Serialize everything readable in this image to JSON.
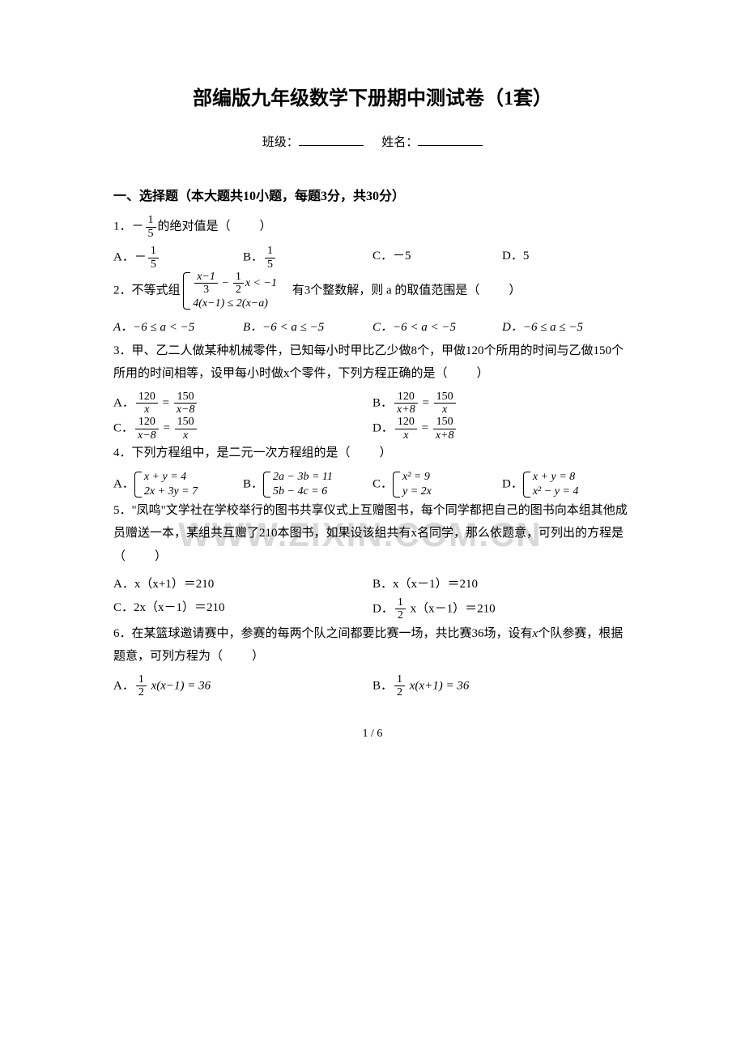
{
  "title": "部编版九年级数学下册期中测试卷（1套）",
  "info": {
    "class_label": "班级：",
    "name_label": "姓名："
  },
  "section1_header": "一、选择题（本大题共10小题，每题3分，共30分）",
  "watermark": "WWW.ZIXIN.COM.CN",
  "pagenum": "1 / 6",
  "q1": {
    "stem_a": "1．－",
    "stem_frac_num": "1",
    "stem_frac_den": "5",
    "stem_b": "的绝对值是",
    "paren": "（　　）",
    "A_pre": "A．－",
    "A_num": "1",
    "A_den": "5",
    "B_pre": "B．",
    "B_num": "1",
    "B_den": "5",
    "C": "C．－5",
    "D": "D．5"
  },
  "q2": {
    "stem_a": "2．不等式组",
    "row1_a_num": "x−1",
    "row1_a_den": "3",
    "row1_mid": " − ",
    "row1_b_num": "1",
    "row1_b_den": "2",
    "row1_tail": "x < −1",
    "row2": "4(x−1) ≤ 2(x−a)",
    "stem_b": "　有3个整数解，则 a 的取值范围是",
    "paren": "（　　）",
    "A": "A．−6 ≤ a < −5",
    "B": "B．−6 < a ≤ −5",
    "C": "C．−6 < a < −5",
    "D": "D．−6 ≤ a ≤ −5"
  },
  "q3": {
    "stem": "3．甲、乙二人做某种机械零件，已知每小时甲比乙少做8个，甲做120个所用的时间与乙做150个所用的时间相等，设甲每小时做x个零件，下列方程正确的是",
    "paren": "（　　）",
    "A_pre": "A．",
    "A1n": "120",
    "A1d": "x",
    "Aeq": " = ",
    "A2n": "150",
    "A2d": "x−8",
    "B_pre": "B．",
    "B1n": "120",
    "B1d": "x+8",
    "Beq": " = ",
    "B2n": "150",
    "B2d": "x",
    "C_pre": "C．",
    "C1n": "120",
    "C1d": "x−8",
    "Ceq": " = ",
    "C2n": "150",
    "C2d": "x",
    "D_pre": "D．",
    "D1n": "120",
    "D1d": "x",
    "Deq": " = ",
    "D2n": "150",
    "D2d": "x+8"
  },
  "q4": {
    "stem": "4．下列方程组中，是二元一次方程组的是",
    "paren": "（　　）",
    "A_pre": "A．",
    "A_r1": "x + y = 4",
    "A_r2": "2x + 3y = 7",
    "B_pre": "B．",
    "B_r1": "2a − 3b = 11",
    "B_r2": "5b − 4c = 6",
    "C_pre": "C．",
    "C_r1": "x² = 9",
    "C_r2": "y = 2x",
    "D_pre": "D．",
    "D_r1": "x + y = 8",
    "D_r2": "x² − y = 4"
  },
  "q5": {
    "stem": "5．\"凤鸣\"文学社在学校举行的图书共享仪式上互赠图书，每个同学都把自己的图书向本组其他成员赠送一本，某组共互赠了210本图书，如果设该组共有x名同学，那么依题意，可列出的方程是",
    "paren": "（　　）",
    "A": "A．x（x+1）＝210",
    "B": "B．x（x－1）＝210",
    "C": "C．2x（x－1）＝210",
    "D_pre": "D．",
    "D_num": "1",
    "D_den": "2",
    "D_tail": " x（x－1）＝210"
  },
  "q6": {
    "stem_a": "6．在某篮球邀请赛中，参赛的每两个队之间都要比赛一场，共比赛36场，设有",
    "stem_b": "x",
    "stem_c": "个队参赛，根据题意，可列方程为",
    "paren": "（　　）",
    "A_pre": "A．",
    "A_num": "1",
    "A_den": "2",
    "A_tail": " x(x−1) = 36",
    "B_pre": "B．",
    "B_num": "1",
    "B_den": "2",
    "B_tail": " x(x+1) = 36"
  }
}
